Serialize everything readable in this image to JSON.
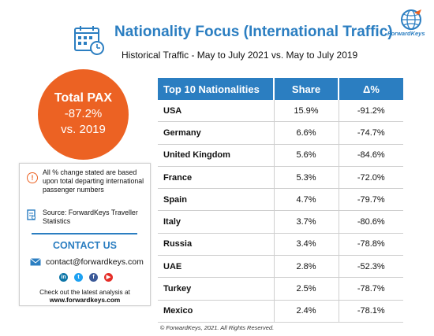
{
  "header": {
    "title": "Nationality Focus (International Traffic)",
    "subtitle": "Historical Traffic - May to July 2021 vs. May to July 2019",
    "logo_text": "ForwardKeys"
  },
  "pax": {
    "title": "Total PAX",
    "change": "-87.2%",
    "comparison": "vs. 2019"
  },
  "info": {
    "note": "All % change stated are based upon total departing international passenger numbers",
    "source": "Source: ForwardKeys Traveller Statistics",
    "contact_heading": "CONTACT US",
    "email": "contact@forwardkeys.com",
    "cta": "Check out the latest analysis at",
    "cta_url": "www.forwardkeys.com"
  },
  "table": {
    "headers": [
      "Top 10 Nationalities",
      "Share",
      "Δ%"
    ],
    "rows": [
      {
        "country": "USA",
        "share": "15.9%",
        "change": "-91.2%"
      },
      {
        "country": "Germany",
        "share": "6.6%",
        "change": "-74.7%"
      },
      {
        "country": "United Kingdom",
        "share": "5.6%",
        "change": "-84.6%"
      },
      {
        "country": "France",
        "share": "5.3%",
        "change": "-72.0%"
      },
      {
        "country": "Spain",
        "share": "4.7%",
        "change": "-79.7%"
      },
      {
        "country": "Italy",
        "share": "3.7%",
        "change": "-80.6%"
      },
      {
        "country": "Russia",
        "share": "3.4%",
        "change": "-78.8%"
      },
      {
        "country": "UAE",
        "share": "2.8%",
        "change": "-52.3%"
      },
      {
        "country": "Turkey",
        "share": "2.5%",
        "change": "-78.7%"
      },
      {
        "country": "Mexico",
        "share": "2.4%",
        "change": "-78.1%"
      }
    ]
  },
  "footer": "© ForwardKeys, 2021. All Rights Reserved.",
  "colors": {
    "accent_blue": "#2b7ec1",
    "accent_orange": "#ec6223"
  },
  "icons": [
    "calendar-icon",
    "globe-logo",
    "exclamation-icon",
    "document-icon",
    "mail-icon",
    "linkedin-icon",
    "twitter-icon",
    "facebook-icon",
    "youtube-icon"
  ]
}
